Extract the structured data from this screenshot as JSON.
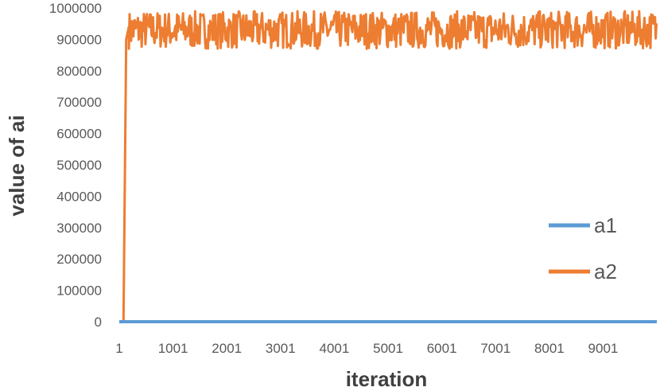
{
  "chart_data": {
    "type": "line",
    "title": "",
    "xlabel": "iteration",
    "ylabel": "value of ai",
    "xlim": [
      1,
      10000
    ],
    "ylim": [
      0,
      1000000
    ],
    "y_ticks": [
      0,
      100000,
      200000,
      300000,
      400000,
      500000,
      600000,
      700000,
      800000,
      900000,
      1000000
    ],
    "y_tick_labels": [
      "0",
      "100000",
      "200000",
      "300000",
      "400000",
      "500000",
      "600000",
      "700000",
      "800000",
      "900000",
      "1000000"
    ],
    "x_ticks": [
      1,
      1001,
      2001,
      3001,
      4001,
      5001,
      6001,
      7001,
      8001,
      9001
    ],
    "x_tick_labels": [
      "1",
      "1001",
      "2001",
      "3001",
      "4001",
      "5001",
      "6001",
      "7001",
      "8001",
      "9001"
    ],
    "grid": false,
    "legend_position": "right",
    "series": [
      {
        "name": "a1",
        "color": "#5b9bd5",
        "points": [
          [
            1,
            0
          ],
          [
            10000,
            0
          ]
        ]
      },
      {
        "name": "a2",
        "color": "#ed7d31",
        "points": [
          [
            1,
            0
          ],
          [
            80,
            0
          ],
          [
            130,
            900000
          ],
          [
            180,
            940000
          ],
          [
            10000,
            930000
          ]
        ],
        "steady_state": {
          "from": 180,
          "min": 870000,
          "max": 990000
        }
      }
    ]
  }
}
